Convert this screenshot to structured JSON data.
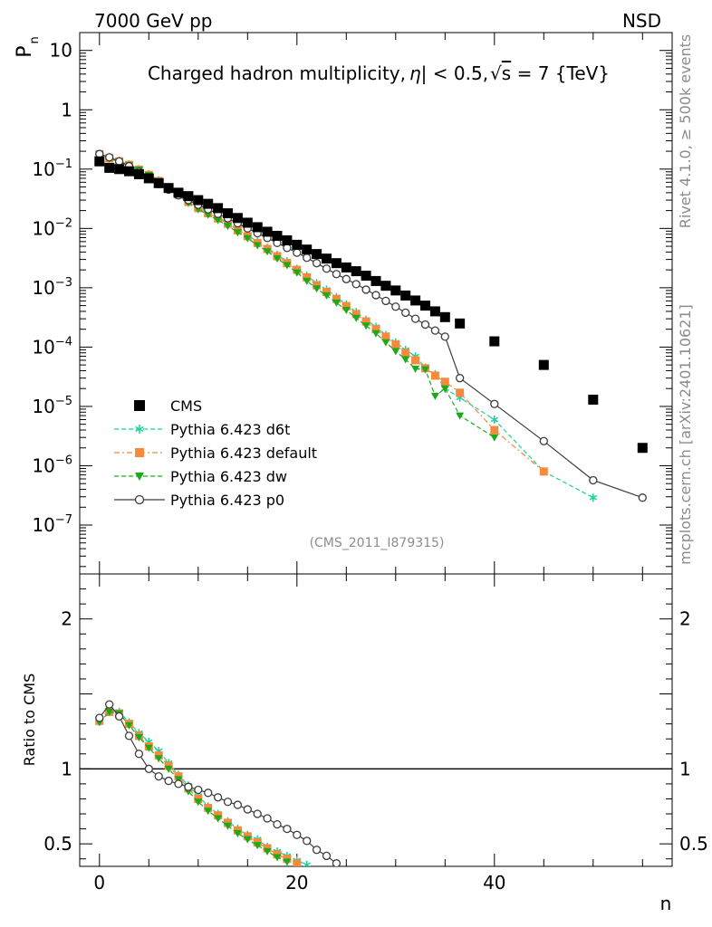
{
  "header": {
    "left": "7000 GeV pp",
    "right": "NSD"
  },
  "side": {
    "rivet": "Rivet 4.1.0, ≥ 500k events",
    "mcplots": "mcplots.cern.ch [arXiv:2401.10621]"
  },
  "chart_data": {
    "type": "scatter",
    "title": "Charged hadron multiplicity, |η| < 0.5, √s = 7 {TeV}",
    "title_parts": {
      "a": "Charged hadron multiplicity,",
      "eta": "η",
      "b": "| < 0.5,",
      "sqrt": "√",
      "s": "s",
      "c": " = 7 {TeV}"
    },
    "analysis_id": "(CMS_2011_I879315)",
    "xlabel": "n",
    "ylabel": "P",
    "ylabel_sub": "n",
    "ratio_ylabel": "Ratio to CMS",
    "xlim": [
      -2,
      58
    ],
    "ylim": [
      1.5e-08,
      20
    ],
    "ratio_ylim": [
      0.35,
      2.3
    ],
    "x_ticks": [
      0,
      20,
      40
    ],
    "y_ticks": [
      {
        "value": 10,
        "base": "10",
        "exp": ""
      },
      {
        "value": 1,
        "base": "1",
        "exp": ""
      },
      {
        "value": 0.1,
        "base": "10",
        "exp": "−1"
      },
      {
        "value": 0.01,
        "base": "10",
        "exp": "−2"
      },
      {
        "value": 0.001,
        "base": "10",
        "exp": "−3"
      },
      {
        "value": 0.0001,
        "base": "10",
        "exp": "−4"
      },
      {
        "value": 1e-05,
        "base": "10",
        "exp": "−5"
      },
      {
        "value": 1e-06,
        "base": "10",
        "exp": "−6"
      },
      {
        "value": 1e-07,
        "base": "10",
        "exp": "−7"
      }
    ],
    "ratio_ticks": [
      {
        "value": 2,
        "label": "2"
      },
      {
        "value": 1,
        "label": "1"
      },
      {
        "value": 0.5,
        "label": "0.5"
      }
    ],
    "series": [
      {
        "name": "CMS",
        "color": "#000000",
        "marker": "square",
        "line": "none",
        "x": [
          0,
          1,
          2,
          3,
          4,
          5,
          6,
          7,
          8,
          9,
          10,
          11,
          12,
          13,
          14,
          15,
          16,
          17,
          18,
          19,
          20,
          21,
          22,
          23,
          24,
          25,
          26,
          27,
          28,
          29,
          30,
          31,
          32,
          33,
          34,
          35,
          36.5,
          40,
          45,
          50,
          55
        ],
        "y": [
          0.135,
          0.105,
          0.1,
          0.092,
          0.082,
          0.07,
          0.058,
          0.048,
          0.04,
          0.035,
          0.03,
          0.026,
          0.022,
          0.018,
          0.015,
          0.0125,
          0.0105,
          0.0088,
          0.0075,
          0.0063,
          0.0053,
          0.0044,
          0.0037,
          0.0031,
          0.0026,
          0.0022,
          0.0019,
          0.0016,
          0.0013,
          0.00108,
          0.0009,
          0.00074,
          0.00061,
          0.0005,
          0.0004,
          0.00032,
          0.00025,
          0.000125,
          5e-05,
          1.3e-05,
          2e-06
        ],
        "ratio": []
      },
      {
        "name": "Pythia 6.423 d6t",
        "color": "#1fcf9f",
        "marker": "star",
        "line": "dashed",
        "x": [
          0,
          1,
          2,
          3,
          4,
          5,
          6,
          7,
          8,
          9,
          10,
          11,
          12,
          13,
          14,
          15,
          16,
          17,
          18,
          19,
          20,
          21,
          22,
          23,
          24,
          25,
          26,
          27,
          28,
          29,
          30,
          31,
          32,
          33,
          34,
          35,
          36.5,
          40,
          45,
          50
        ],
        "y": [
          0.18,
          0.155,
          0.138,
          0.12,
          0.1,
          0.082,
          0.065,
          0.05,
          0.038,
          0.029,
          0.023,
          0.019,
          0.0155,
          0.0125,
          0.0097,
          0.0077,
          0.006,
          0.0047,
          0.0036,
          0.0028,
          0.0021,
          0.0016,
          0.0012,
          0.00093,
          0.0007,
          0.00052,
          0.00039,
          0.00029,
          0.00022,
          0.00016,
          0.00012,
          9e-05,
          7e-05,
          4.5e-05,
          3.5e-05,
          2e-05,
          1.4e-05,
          6e-06,
          8e-07,
          2.9e-07
        ],
        "ratio": [
          1.33,
          1.39,
          1.38,
          1.31,
          1.24,
          1.18,
          1.12,
          1.04,
          0.96,
          0.89,
          0.82,
          0.75,
          0.7,
          0.65,
          0.6,
          0.56,
          0.53,
          0.48,
          0.45,
          0.42,
          0.39,
          0.36
        ],
        "ratio_x": [
          0,
          1,
          2,
          3,
          4,
          5,
          6,
          7,
          8,
          9,
          10,
          11,
          12,
          13,
          14,
          15,
          16,
          17,
          18,
          19,
          20,
          21
        ]
      },
      {
        "name": "Pythia 6.423 default",
        "color": "#f58a3c",
        "marker": "square",
        "line": "dashdot",
        "x": [
          0,
          1,
          2,
          3,
          4,
          5,
          6,
          7,
          8,
          9,
          10,
          11,
          12,
          13,
          14,
          15,
          16,
          17,
          18,
          19,
          20,
          21,
          22,
          23,
          24,
          25,
          26,
          27,
          28,
          29,
          30,
          31,
          32,
          33,
          34,
          35,
          36.5,
          40,
          45
        ],
        "y": [
          0.178,
          0.152,
          0.135,
          0.118,
          0.098,
          0.08,
          0.063,
          0.048,
          0.037,
          0.028,
          0.022,
          0.018,
          0.0148,
          0.012,
          0.0093,
          0.0074,
          0.0057,
          0.0045,
          0.0034,
          0.0026,
          0.002,
          0.0015,
          0.0011,
          0.00085,
          0.00065,
          0.00049,
          0.00036,
          0.00027,
          0.0002,
          0.00015,
          0.00011,
          8e-05,
          6e-05,
          4.4e-05,
          3.3e-05,
          2.6e-05,
          1.7e-05,
          4e-06,
          8e-07
        ],
        "ratio": [
          1.32,
          1.38,
          1.37,
          1.3,
          1.22,
          1.15,
          1.09,
          1.02,
          0.95,
          0.87,
          0.8,
          0.74,
          0.69,
          0.64,
          0.59,
          0.55,
          0.51,
          0.47,
          0.43,
          0.4,
          0.37
        ],
        "ratio_x": [
          0,
          1,
          2,
          3,
          4,
          5,
          6,
          7,
          8,
          9,
          10,
          11,
          12,
          13,
          14,
          15,
          16,
          17,
          18,
          19,
          20
        ]
      },
      {
        "name": "Pythia 6.423 dw",
        "color": "#1aab1a",
        "marker": "triangle-down",
        "line": "dashed",
        "x": [
          0,
          1,
          2,
          3,
          4,
          5,
          6,
          7,
          8,
          9,
          10,
          11,
          12,
          13,
          14,
          15,
          16,
          17,
          18,
          19,
          20,
          21,
          22,
          23,
          24,
          25,
          26,
          27,
          28,
          29,
          30,
          31,
          32,
          33,
          34,
          35,
          36.5,
          40
        ],
        "y": [
          0.176,
          0.15,
          0.134,
          0.117,
          0.097,
          0.079,
          0.062,
          0.047,
          0.036,
          0.027,
          0.021,
          0.017,
          0.0138,
          0.011,
          0.0086,
          0.0068,
          0.0052,
          0.0041,
          0.0031,
          0.0024,
          0.0018,
          0.0013,
          0.00097,
          0.00074,
          0.00056,
          0.00042,
          0.00031,
          0.00023,
          0.00017,
          0.00012,
          8.5e-05,
          6.2e-05,
          4.3e-05,
          4.2e-05,
          1.5e-05,
          2e-05,
          7e-06,
          3e-06
        ],
        "ratio": [
          1.31,
          1.38,
          1.37,
          1.29,
          1.21,
          1.14,
          1.07,
          1.0,
          0.93,
          0.85,
          0.78,
          0.72,
          0.67,
          0.62,
          0.57,
          0.53,
          0.49,
          0.45,
          0.41,
          0.38
        ],
        "ratio_x": [
          0,
          1,
          2,
          3,
          4,
          5,
          6,
          7,
          8,
          9,
          10,
          11,
          12,
          13,
          14,
          15,
          16,
          17,
          18,
          19
        ]
      },
      {
        "name": "Pythia 6.423 p0",
        "color": "#3c3c3c",
        "marker": "circle-open",
        "line": "solid",
        "x": [
          0,
          1,
          2,
          3,
          4,
          5,
          6,
          7,
          8,
          9,
          10,
          11,
          12,
          13,
          14,
          15,
          16,
          17,
          18,
          19,
          20,
          21,
          22,
          23,
          24,
          25,
          26,
          27,
          28,
          29,
          30,
          31,
          32,
          33,
          34,
          35,
          36.5,
          40,
          45,
          50,
          55
        ],
        "y": [
          0.18,
          0.158,
          0.135,
          0.112,
          0.09,
          0.07,
          0.056,
          0.045,
          0.036,
          0.03,
          0.025,
          0.021,
          0.0176,
          0.0148,
          0.0122,
          0.01,
          0.0083,
          0.0069,
          0.0057,
          0.0047,
          0.0039,
          0.0032,
          0.0026,
          0.0021,
          0.0017,
          0.0014,
          0.00115,
          0.00093,
          0.00075,
          0.0006,
          0.00048,
          0.00038,
          0.0003,
          0.00024,
          0.00019,
          0.00015,
          3e-05,
          1.1e-05,
          2.6e-06,
          5.7e-07,
          2.9e-07
        ],
        "ratio": [
          1.34,
          1.43,
          1.35,
          1.22,
          1.1,
          1.0,
          0.95,
          0.92,
          0.9,
          0.88,
          0.86,
          0.84,
          0.81,
          0.78,
          0.76,
          0.73,
          0.7,
          0.67,
          0.63,
          0.6,
          0.56,
          0.52,
          0.46,
          0.42,
          0.37
        ],
        "ratio_x": [
          0,
          1,
          2,
          3,
          4,
          5,
          6,
          7,
          8,
          9,
          10,
          11,
          12,
          13,
          14,
          15,
          16,
          17,
          18,
          19,
          20,
          21,
          22,
          23,
          24
        ]
      }
    ]
  }
}
